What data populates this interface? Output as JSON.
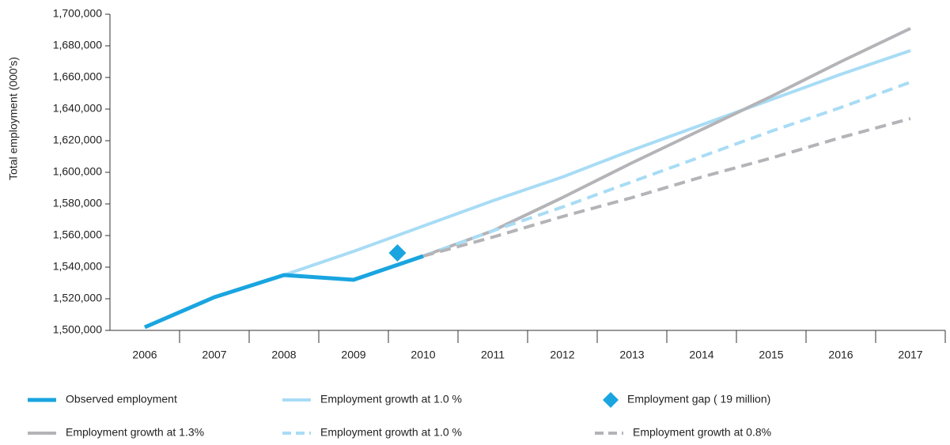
{
  "chart_data": {
    "type": "line",
    "y_label": "Total employment (000's)",
    "categories": [
      "2006",
      "2007",
      "2008",
      "2009",
      "2010",
      "2011",
      "2012",
      "2013",
      "2014",
      "2015",
      "2016",
      "2017"
    ],
    "ylim": [
      1500000,
      1700000
    ],
    "yticks": [
      {
        "value": 1500000,
        "label": "1,500,000"
      },
      {
        "value": 1520000,
        "label": "1,520,000"
      },
      {
        "value": 1540000,
        "label": "1,540,000"
      },
      {
        "value": 1560000,
        "label": "1,560,000"
      },
      {
        "value": 1580000,
        "label": "1,580,000"
      },
      {
        "value": 1600000,
        "label": "1,600,000"
      },
      {
        "value": 1620000,
        "label": "1,620,000"
      },
      {
        "value": 1640000,
        "label": "1,640,000"
      },
      {
        "value": 1660000,
        "label": "1,660,000"
      },
      {
        "value": 1680000,
        "label": "1,680,000"
      },
      {
        "value": 1700000,
        "label": "1,700,000"
      }
    ],
    "series": [
      {
        "name": "Observed employment",
        "color": "#1aa5e0",
        "style": "solid",
        "width": 5,
        "values": [
          1502000,
          1521000,
          1535000,
          1532000,
          1547000,
          null,
          null,
          null,
          null,
          null,
          null,
          null
        ]
      },
      {
        "name": "Employment growth at 1.0 %",
        "color": "#a8dcf5",
        "style": "solid",
        "width": 4,
        "values": [
          null,
          null,
          1535000,
          1550000,
          1566000,
          1582000,
          1597000,
          1614000,
          1630000,
          1646000,
          1662000,
          1677000
        ]
      },
      {
        "name": "Employment gap ( 19 million)",
        "color": "#1aa5e0",
        "style": "diamond",
        "values": [
          null,
          null,
          null,
          null,
          1549000,
          null,
          null,
          null,
          null,
          null,
          null,
          null
        ]
      },
      {
        "name": "Employment growth at 1.3%",
        "color": "#b4b4b8",
        "style": "solid",
        "width": 4,
        "values": [
          null,
          null,
          null,
          null,
          1547000,
          1563000,
          1584000,
          1606000,
          1627000,
          1648000,
          1670000,
          1691000
        ]
      },
      {
        "name": "Employment growth at 1.0 %",
        "color": "#a8dcf5",
        "style": "dashed",
        "width": 4,
        "values": [
          null,
          null,
          null,
          null,
          1547000,
          1563000,
          1578000,
          1594000,
          1610000,
          1626000,
          1641000,
          1657000
        ]
      },
      {
        "name": "Employment growth at 0.8%",
        "color": "#b4b4b8",
        "style": "dashed",
        "width": 4,
        "values": [
          null,
          null,
          null,
          null,
          1547000,
          1559000,
          1572000,
          1584000,
          1597000,
          1609000,
          1622000,
          1634000
        ]
      }
    ]
  }
}
